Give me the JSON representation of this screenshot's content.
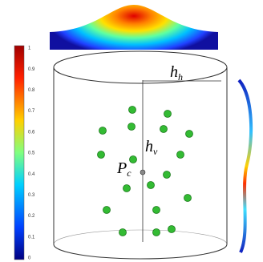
{
  "colorbar": {
    "ticks": [
      "1",
      "0.9",
      "0.8",
      "0.7",
      "0.6",
      "0.5",
      "0.4",
      "0.3",
      "0.2",
      "0.1",
      "0"
    ]
  },
  "labels": {
    "hh": {
      "base": "h",
      "sub": "h"
    },
    "hv": {
      "base": "h",
      "sub": "v"
    },
    "pc": {
      "base": "P",
      "sub": "c"
    }
  }
}
